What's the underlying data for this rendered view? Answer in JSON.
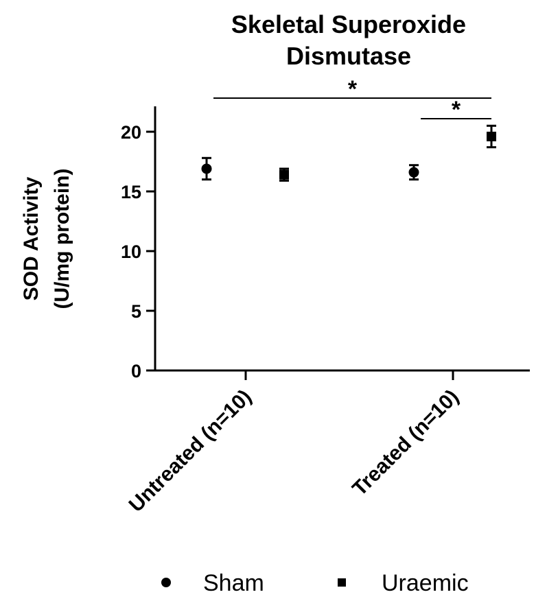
{
  "chart_data": {
    "type": "scatter",
    "title_lines": [
      "Skeletal Superoxide",
      "Dismutase"
    ],
    "ylabel_lines": [
      "SOD Activity",
      "(U/mg protein)"
    ],
    "xlabel": "",
    "categories": [
      "Untreated (n=10)",
      "Treated (n=10)"
    ],
    "ylim": [
      0,
      22
    ],
    "yticks": [
      0,
      5,
      10,
      15,
      20
    ],
    "series": [
      {
        "name": "Sham",
        "marker": "circle",
        "values": [
          16.9,
          16.6
        ],
        "errors": [
          0.9,
          0.6
        ]
      },
      {
        "name": "Uraemic",
        "marker": "square",
        "values": [
          16.4,
          19.6
        ],
        "errors": [
          0.5,
          0.9
        ]
      }
    ],
    "significance": [
      {
        "label": "*",
        "from": {
          "series": "Sham",
          "category": "Untreated (n=10)"
        },
        "to": {
          "series": "Uraemic",
          "category": "Treated (n=10)"
        }
      },
      {
        "label": "*",
        "from": {
          "series": "Sham",
          "category": "Treated (n=10)"
        },
        "to": {
          "series": "Uraemic",
          "category": "Treated (n=10)"
        }
      }
    ],
    "legend_position": "bottom",
    "grid": false,
    "color": "#000000"
  }
}
